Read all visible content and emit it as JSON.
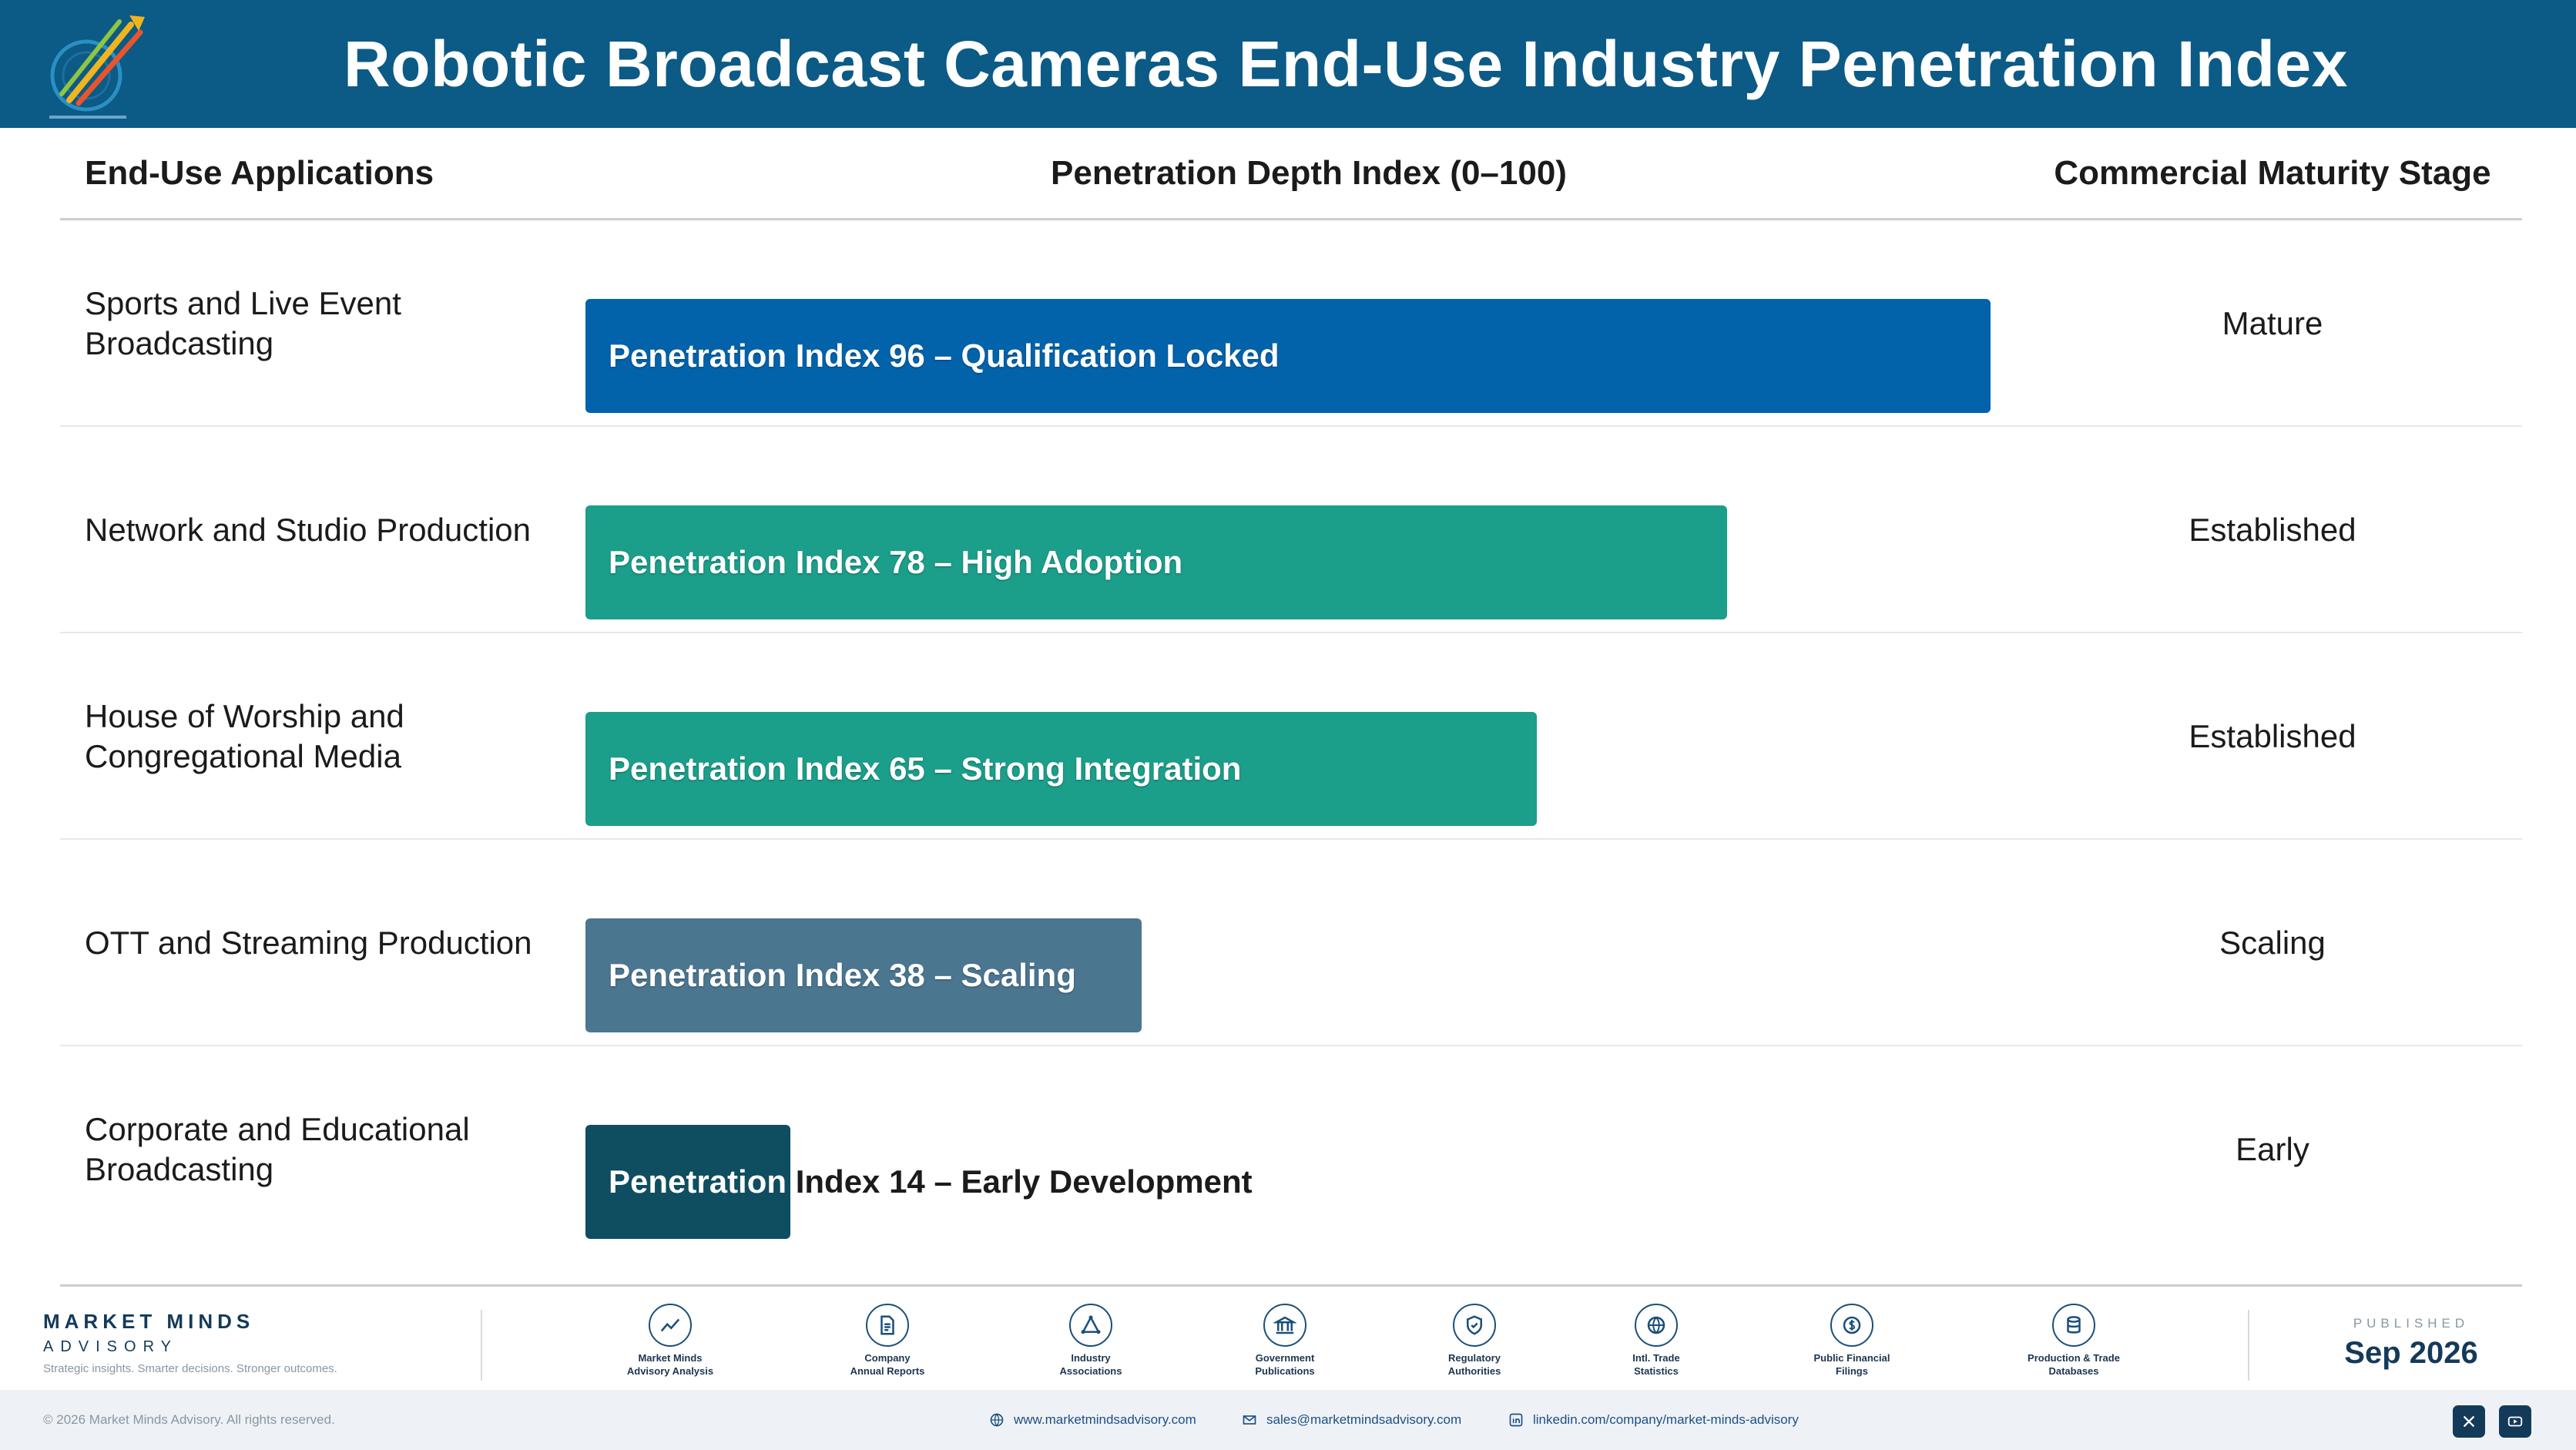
{
  "header": {
    "title": "Robotic Broadcast Cameras End-Use Industry Penetration Index"
  },
  "columns": {
    "applications": "End-Use Applications",
    "index": "Penetration Depth Index (0–100)",
    "stage": "Commercial Maturity Stage"
  },
  "chart_data": {
    "type": "bar",
    "orientation": "horizontal",
    "title": "Robotic Broadcast Cameras End-Use Industry Penetration Index",
    "xlabel": "Penetration Depth Index (0–100)",
    "xlim": [
      0,
      100
    ],
    "categories": [
      "Sports and Live Event Broadcasting",
      "Network and Studio Production",
      "House of Worship and Congregational Media",
      "OTT and Streaming Production",
      "Corporate and Educational Broadcasting"
    ],
    "values": [
      96,
      78,
      65,
      38,
      14
    ],
    "bar_labels": [
      "Penetration Index 96 – Qualification Locked",
      "Penetration Index 78 – High Adoption",
      "Penetration Index 65 – Strong Integration",
      "Penetration Index 38 – Scaling",
      "Penetration Index 14 – Early Development"
    ],
    "stages": [
      "Mature",
      "Established",
      "Established",
      "Scaling",
      "Early"
    ],
    "colors": [
      "#0263ab",
      "#1b9e8a",
      "#1b9e8a",
      "#4b7690",
      "#0f4d60"
    ]
  },
  "footer": {
    "brand_name": "MARKET MINDS",
    "brand_sub": "ADVISORY",
    "tagline": "Strategic insights. Smarter decisions. Stronger outcomes.",
    "sources": [
      {
        "icon": "trend-chart-icon",
        "line1": "Market Minds",
        "line2": "Advisory Analysis"
      },
      {
        "icon": "document-icon",
        "line1": "Company",
        "line2": "Annual Reports"
      },
      {
        "icon": "network-icon",
        "line1": "Industry",
        "line2": "Associations"
      },
      {
        "icon": "government-building-icon",
        "line1": "Government",
        "line2": "Publications"
      },
      {
        "icon": "shield-check-icon",
        "line1": "Regulatory",
        "line2": "Authorities"
      },
      {
        "icon": "globe-icon",
        "line1": "Intl. Trade",
        "line2": "Statistics"
      },
      {
        "icon": "currency-icon",
        "line1": "Public Financial",
        "line2": "Filings"
      },
      {
        "icon": "database-icon",
        "line1": "Production & Trade",
        "line2": "Databases"
      }
    ],
    "published_label": "PUBLISHED",
    "published_date": "Sep 2026",
    "copyright": "© 2026 Market Minds Advisory. All rights reserved.",
    "website": "www.marketmindsadvisory.com",
    "email": "sales@marketmindsadvisory.com",
    "linkedin": "linkedin.com/company/market-minds-advisory"
  }
}
